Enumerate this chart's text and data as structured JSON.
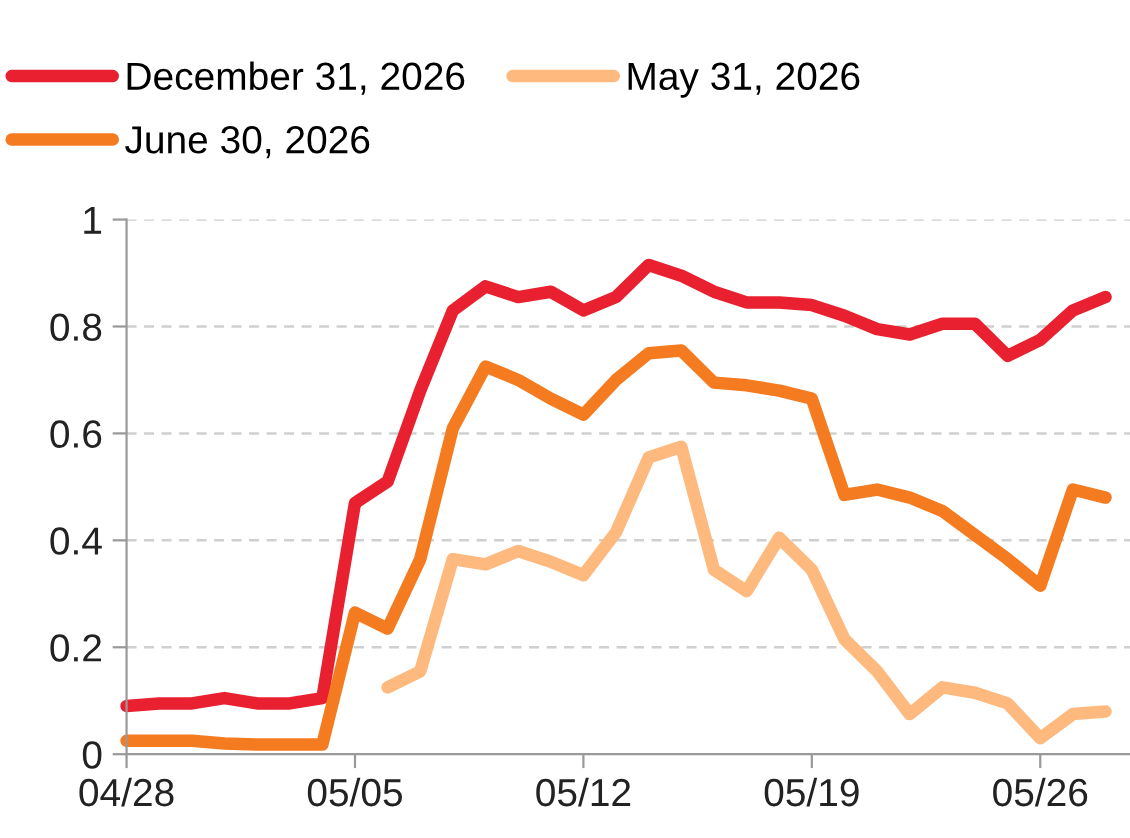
{
  "chart_data": {
    "type": "line",
    "x": [
      "2026-04-28",
      "2026-04-29",
      "2026-04-30",
      "2026-05-01",
      "2026-05-02",
      "2026-05-03",
      "2026-05-04",
      "2026-05-05",
      "2026-05-06",
      "2026-05-07",
      "2026-05-08",
      "2026-05-09",
      "2026-05-10",
      "2026-05-11",
      "2026-05-12",
      "2026-05-13",
      "2026-05-14",
      "2026-05-15",
      "2026-05-16",
      "2026-05-17",
      "2026-05-18",
      "2026-05-19",
      "2026-05-20",
      "2026-05-21",
      "2026-05-22",
      "2026-05-23",
      "2026-05-24",
      "2026-05-25",
      "2026-05-26",
      "2026-05-27",
      "2026-05-28"
    ],
    "series": [
      {
        "name": "December 31, 2026",
        "color": "#e8202f",
        "values": [
          0.09,
          0.095,
          0.095,
          0.105,
          0.095,
          0.095,
          0.105,
          0.47,
          0.51,
          0.68,
          0.83,
          0.875,
          0.855,
          0.865,
          0.83,
          0.855,
          0.915,
          0.895,
          0.865,
          0.845,
          0.845,
          0.84,
          0.82,
          0.795,
          0.785,
          0.805,
          0.805,
          0.745,
          0.775,
          0.83,
          0.855
        ]
      },
      {
        "name": "June 30, 2026",
        "color": "#f47b20",
        "values": [
          0.025,
          0.025,
          0.025,
          0.02,
          0.018,
          0.018,
          0.018,
          0.265,
          0.235,
          0.365,
          0.61,
          0.725,
          0.7,
          0.665,
          0.635,
          0.7,
          0.75,
          0.755,
          0.695,
          0.69,
          0.68,
          0.665,
          0.485,
          0.495,
          0.48,
          0.455,
          0.41,
          0.365,
          0.315,
          0.495,
          0.48
        ]
      },
      {
        "name": "May 31, 2026",
        "color": "#fdb97e",
        "values": [
          null,
          null,
          null,
          null,
          null,
          null,
          null,
          null,
          0.125,
          0.155,
          0.365,
          0.355,
          0.38,
          0.36,
          0.335,
          0.415,
          0.555,
          0.575,
          0.345,
          0.305,
          0.405,
          0.345,
          0.215,
          0.155,
          0.075,
          0.125,
          0.115,
          0.095,
          0.03,
          0.075,
          0.08
        ]
      }
    ],
    "xlim": [
      "2026-04-28",
      "2026-05-28T18:00"
    ],
    "xticks": [
      {
        "value": "2026-04-28",
        "label": "04/28"
      },
      {
        "value": "2026-05-05",
        "label": "05/05"
      },
      {
        "value": "2026-05-12",
        "label": "05/12"
      },
      {
        "value": "2026-05-19",
        "label": "05/19"
      },
      {
        "value": "2026-05-26",
        "label": "05/26"
      }
    ],
    "ylim": [
      0,
      1
    ],
    "yticks": [
      0,
      0.2,
      0.4,
      0.6,
      0.8,
      1
    ],
    "grid": "y",
    "legend": "top",
    "line_style": "solid",
    "marker": "none"
  }
}
